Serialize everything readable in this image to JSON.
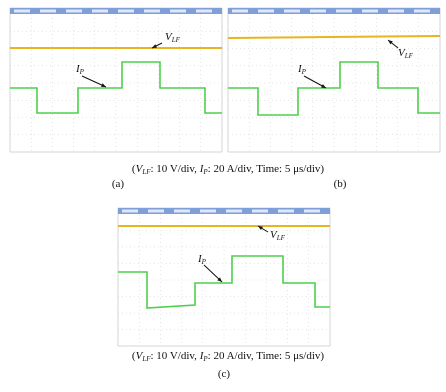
{
  "panels": [
    {
      "v_label": {
        "main": "V",
        "sub": "LF"
      },
      "i_label": {
        "main": "I",
        "sub": "P"
      },
      "panel_label": "(a)"
    },
    {
      "v_label": {
        "main": "V",
        "sub": "LF"
      },
      "i_label": {
        "main": "I",
        "sub": "P"
      },
      "panel_label": "(b)"
    },
    {
      "v_label": {
        "main": "V",
        "sub": "LF"
      },
      "i_label": {
        "main": "I",
        "sub": "P"
      },
      "panel_label": "(c)"
    }
  ],
  "captions": [
    {
      "parts": [
        "(",
        "V",
        "LF",
        ": 10 V/div, ",
        "I",
        "P",
        ": 20 A/div, Time: 5 μs/div)"
      ]
    },
    {
      "parts": [
        "(",
        "V",
        "LF",
        ": 10 V/div, ",
        "I",
        "P",
        ": 20 A/div, Time: 5 μs/div)"
      ]
    }
  ]
}
